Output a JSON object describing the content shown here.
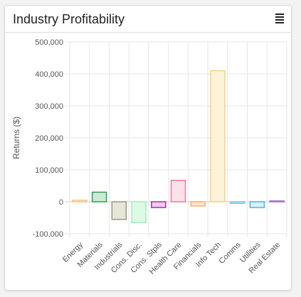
{
  "panel": {
    "title": "Industry Profitability",
    "menu_icon": "menu-icon"
  },
  "chart_data": {
    "type": "bar",
    "title": "",
    "xlabel": "",
    "ylabel": "Returns ($)",
    "ylim": [
      -100000,
      500000
    ],
    "yticks": [
      -100000,
      0,
      100000,
      200000,
      300000,
      400000,
      500000
    ],
    "ytick_labels": [
      "-100,000",
      "0",
      "100,000",
      "200,000",
      "300,000",
      "400,000",
      "500,000"
    ],
    "grid": true,
    "legend": "none",
    "categories": [
      "Energy",
      "Materials",
      "Industrials",
      "Cons. Disc.",
      "Cons. Stpls",
      "Health Care",
      "Financials",
      "Info Tech",
      "Comms",
      "Utilities",
      "Real Estate"
    ],
    "values": [
      5000,
      30000,
      -55000,
      -65000,
      -18000,
      67000,
      -13000,
      410000,
      -5000,
      -18000,
      3000
    ],
    "fill_colors": [
      "#fdebd6",
      "#c9ead5",
      "#e8e6d9",
      "#dcfbe6",
      "#f1c8ef",
      "#fde0e8",
      "#fde6d0",
      "#fdf3d6",
      "#d6eefa",
      "#d8f0fb",
      "#e8dcf2"
    ],
    "border_colors": [
      "#f5c48e",
      "#2e9e53",
      "#9a9a7e",
      "#a6e9bd",
      "#a9339f",
      "#ec7c9c",
      "#f2b072",
      "#f0d48a",
      "#78c4e6",
      "#4ab5e6",
      "#a77cc7"
    ]
  }
}
